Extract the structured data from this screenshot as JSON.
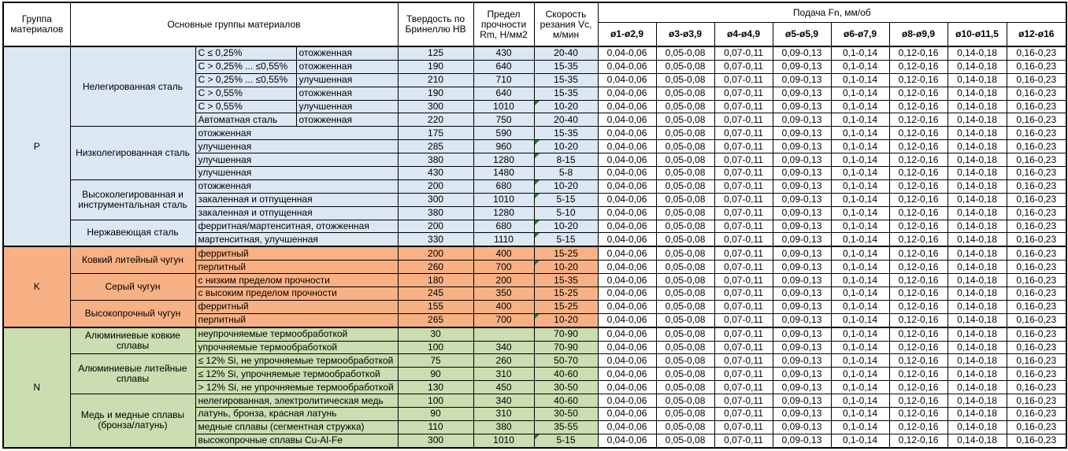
{
  "header": {
    "group": "Группа материалов",
    "main_groups": "Основные группы материалов",
    "hardness": "Твердость по Бринеллю HB",
    "strength": "Предел прочности Rm, Н/мм2",
    "speed": "Скорость резания Vc, м/мин",
    "feed": "Подача Fn, мм/об",
    "feed_columns": [
      "ø1-ø2,9",
      "ø3-ø3,9",
      "ø4-ø4,9",
      "ø5-ø5,9",
      "ø6-ø7,9",
      "ø8-ø9,9",
      "ø10-ø11,5",
      "ø12-ø16"
    ]
  },
  "feed_values": [
    "0,04-0,06",
    "0,05-0,08",
    "0,07-0,11",
    "0,09-0,13",
    "0,1-0,14",
    "0,12-0,16",
    "0,14-0,18",
    "0,16-0,23"
  ],
  "colors": {
    "section_p": "#dbe7f3",
    "section_k": "#f8b184",
    "section_n": "#cbddb1",
    "comment_marker": "#1d7d33",
    "border": "#000000"
  },
  "sections": [
    {
      "code": "P",
      "bg": "#dbe7f3",
      "subgroups": [
        {
          "label": "Нелегированная сталь",
          "rows": [
            {
              "c1": "C ≤ 0,25%",
              "c2": "отожженная",
              "hb": "125",
              "rm": "430",
              "vc": "20-40",
              "tri": false
            },
            {
              "c1": "C > 0,25% ... ≤0,55%",
              "c2": "отожженная",
              "hb": "190",
              "rm": "640",
              "vc": "15-35",
              "tri": false
            },
            {
              "c1": "C > 0,25% ... ≤0,55%",
              "c2": "улучшенная",
              "hb": "210",
              "rm": "710",
              "vc": "15-35",
              "tri": false
            },
            {
              "c1": "C > 0,55%",
              "c2": "отожженная",
              "hb": "190",
              "rm": "640",
              "vc": "15-35",
              "tri": false
            },
            {
              "c1": "C > 0,55%",
              "c2": "улучшенная",
              "hb": "300",
              "rm": "1010",
              "vc": "10-20",
              "tri": true
            },
            {
              "c1": "Автоматная сталь",
              "c2": "отожженная",
              "hb": "220",
              "rm": "750",
              "vc": "20-40",
              "tri": false
            }
          ]
        },
        {
          "label": "Низколегированная сталь",
          "rows": [
            {
              "c1": "отожженная",
              "hb": "175",
              "rm": "590",
              "vc": "15-35",
              "tri": false
            },
            {
              "c1": "улучшенная",
              "hb": "285",
              "rm": "960",
              "vc": "10-20",
              "tri": true
            },
            {
              "c1": "улучшенная",
              "hb": "380",
              "rm": "1280",
              "vc": "8-15",
              "tri": true
            },
            {
              "c1": "улучшенная",
              "hb": "430",
              "rm": "1480",
              "vc": "5-8",
              "tri": false
            }
          ]
        },
        {
          "label": "Высоколегированная и инструментальная сталь",
          "rows": [
            {
              "c1": "отожженная",
              "hb": "200",
              "rm": "680",
              "vc": "10-20",
              "tri": true
            },
            {
              "c1": "закаленная и отпущенная",
              "hb": "300",
              "rm": "1010",
              "vc": "5-15",
              "tri": true
            },
            {
              "c1": "закаленная и отпущенная",
              "hb": "380",
              "rm": "1280",
              "vc": "5-10",
              "tri": false
            }
          ]
        },
        {
          "label": "Нержавеющая сталь",
          "rows": [
            {
              "c1": "ферритная/мартенситная, отожженная",
              "hb": "200",
              "rm": "680",
              "vc": "10-20",
              "tri": true
            },
            {
              "c1": "мартенситная, улучшенная",
              "hb": "330",
              "rm": "1110",
              "vc": "5-15",
              "tri": true
            }
          ]
        }
      ]
    },
    {
      "code": "K",
      "bg": "#f8b184",
      "subgroups": [
        {
          "label": "Ковкий литейный чугун",
          "rows": [
            {
              "c1": "ферритный",
              "hb": "200",
              "rm": "400",
              "vc": "15-25",
              "tri": false
            },
            {
              "c1": "перлитный",
              "hb": "260",
              "rm": "700",
              "vc": "10-20",
              "tri": true
            }
          ]
        },
        {
          "label": "Серый чугун",
          "rows": [
            {
              "c1": "с низким пределом прочности",
              "hb": "180",
              "rm": "200",
              "vc": "15-35",
              "tri": false
            },
            {
              "c1": "с высоким пределом прочности",
              "hb": "245",
              "rm": "350",
              "vc": "15-25",
              "tri": false
            }
          ]
        },
        {
          "label": "Высокопрочный чугун",
          "rows": [
            {
              "c1": "ферритный",
              "hb": "155",
              "rm": "400",
              "vc": "15-25",
              "tri": false
            },
            {
              "c1": "перлитный",
              "hb": "265",
              "rm": "700",
              "vc": "10-20",
              "tri": true
            }
          ]
        }
      ]
    },
    {
      "code": "N",
      "bg": "#cbddb1",
      "subgroups": [
        {
          "label": "Алюминиевые ковкие сплавы",
          "rows": [
            {
              "c1": "неупрочняемые термообработкой",
              "hb": "30",
              "rm": "",
              "vc": "70-90",
              "tri": false
            },
            {
              "c1": "упрочняемые термообработкой",
              "hb": "100",
              "rm": "340",
              "vc": "70-90",
              "tri": false
            }
          ]
        },
        {
          "label": "Алюминиевые литейные сплавы",
          "rows": [
            {
              "c1": "≤ 12% Si, не упрочняемые термообработкой",
              "hb": "75",
              "rm": "260",
              "vc": "50-70",
              "tri": false
            },
            {
              "c1": "≤ 12% Si, упрочняемые термообработкой",
              "hb": "90",
              "rm": "310",
              "vc": "40-60",
              "tri": false
            },
            {
              "c1": "> 12% Si, не упрочняемые термообработкой",
              "hb": "130",
              "rm": "450",
              "vc": "30-50",
              "tri": false
            }
          ]
        },
        {
          "label": "Медь и медные сплавы (бронза/латунь)",
          "rows": [
            {
              "c1": "нелегированная, электролитическая медь",
              "hb": "100",
              "rm": "340",
              "vc": "40-60",
              "tri": false
            },
            {
              "c1": "латунь, бронза, красная латунь",
              "hb": "90",
              "rm": "310",
              "vc": "30-50",
              "tri": false
            },
            {
              "c1": "медные сплавы (сегментная стружка)",
              "hb": "110",
              "rm": "380",
              "vc": "35-55",
              "tri": false
            },
            {
              "c1": "высокопрочные сплавы Cu-Al-Fe",
              "hb": "300",
              "rm": "1010",
              "vc": "5-15",
              "tri": true
            }
          ]
        }
      ]
    }
  ]
}
